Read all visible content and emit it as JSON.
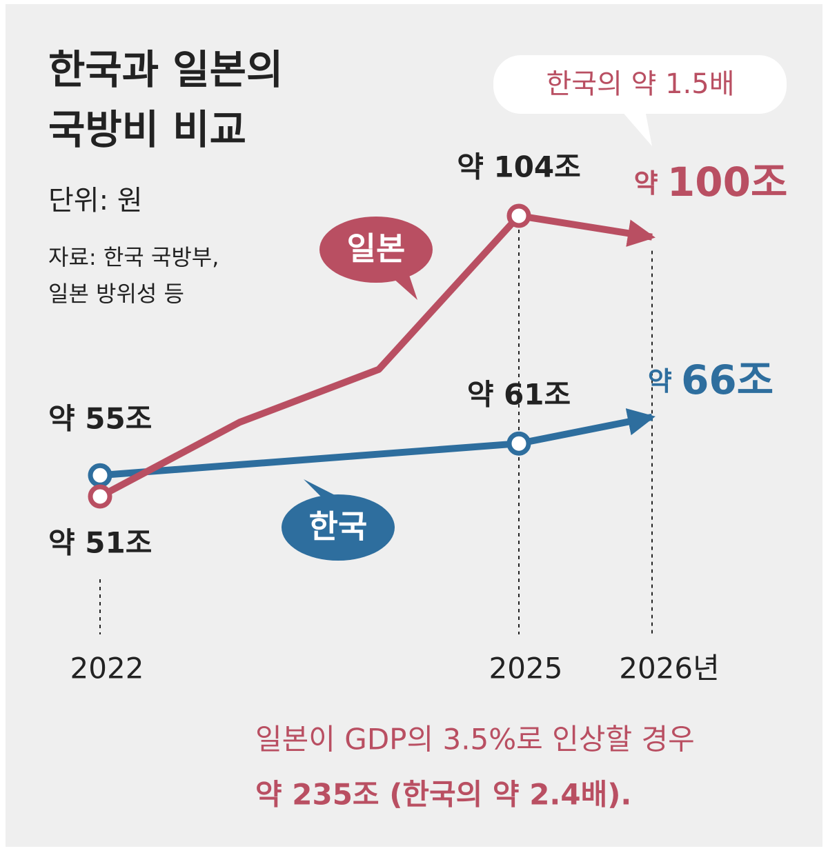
{
  "chart_data": {
    "type": "line",
    "title": [
      "한국과 일본의",
      "국방비 비교"
    ],
    "unit": "단위: 원",
    "source": [
      "자료: 한국 국방부,",
      "일본 방위성 등"
    ],
    "categories": [
      "2022",
      null,
      null,
      "2025",
      "2026년"
    ],
    "series": [
      {
        "name": "일본",
        "color": "#b94f62",
        "values": [
          51,
          65,
          75,
          104,
          100
        ],
        "value_labels": [
          "약 51조",
          null,
          null,
          "약 104조",
          "약 100조"
        ]
      },
      {
        "name": "한국",
        "color": "#2e6e9e",
        "values": [
          55,
          57,
          59,
          61,
          66
        ],
        "value_labels": [
          "약 55조",
          null,
          null,
          "약 61조",
          "약 66조"
        ]
      }
    ],
    "callout": "한국의 약 1.5배",
    "note": [
      "일본이 GDP의 3.5%로 인상할 경우",
      "약 235조 (한국의 약 2.4배)."
    ]
  }
}
